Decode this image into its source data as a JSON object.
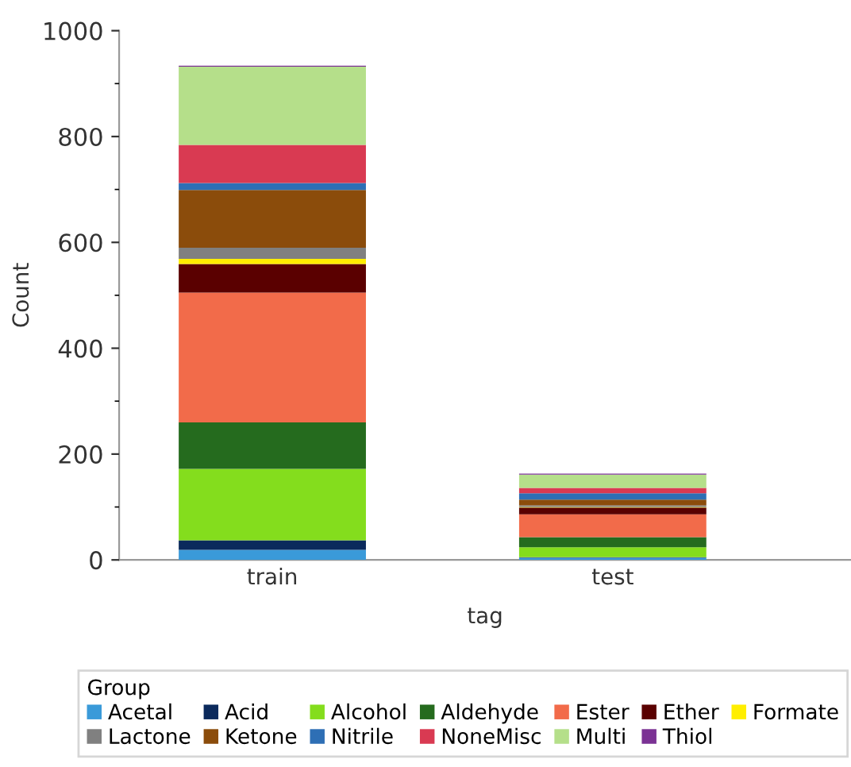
{
  "chart_data": {
    "type": "bar",
    "stacked": true,
    "xlabel": "tag",
    "ylabel": "Count",
    "legend_title": "Group",
    "legend": "bottom",
    "categories": [
      "train",
      "test"
    ],
    "series": [
      {
        "name": "Acetal",
        "color": "#3a9ad9",
        "values": [
          19,
          4
        ]
      },
      {
        "name": "Acid",
        "color": "#0b2a5c",
        "values": [
          18,
          1
        ]
      },
      {
        "name": "Alcohol",
        "color": "#84dd1d",
        "values": [
          135,
          19
        ]
      },
      {
        "name": "Aldehyde",
        "color": "#256b1e",
        "values": [
          88,
          19
        ]
      },
      {
        "name": "Ester",
        "color": "#f26b4a",
        "values": [
          245,
          43
        ]
      },
      {
        "name": "Ether",
        "color": "#5a0000",
        "values": [
          54,
          13
        ]
      },
      {
        "name": "Formate",
        "color": "#ffee00",
        "values": [
          10,
          1
        ]
      },
      {
        "name": "Lactone",
        "color": "#808080",
        "values": [
          21,
          3
        ]
      },
      {
        "name": "Ketone",
        "color": "#8b4c0b",
        "values": [
          109,
          11
        ]
      },
      {
        "name": "Nitrile",
        "color": "#2e6fb5",
        "values": [
          13,
          12
        ]
      },
      {
        "name": "NoneMisc",
        "color": "#d93a52",
        "values": [
          72,
          10
        ]
      },
      {
        "name": "Multi",
        "color": "#b5df8a",
        "values": [
          148,
          25
        ]
      },
      {
        "name": "Thiol",
        "color": "#7b3294",
        "values": [
          2,
          2
        ]
      }
    ],
    "ylim": [
      0,
      1000
    ],
    "yticks": [
      0,
      200,
      400,
      600,
      800,
      1000
    ],
    "grid": false
  }
}
